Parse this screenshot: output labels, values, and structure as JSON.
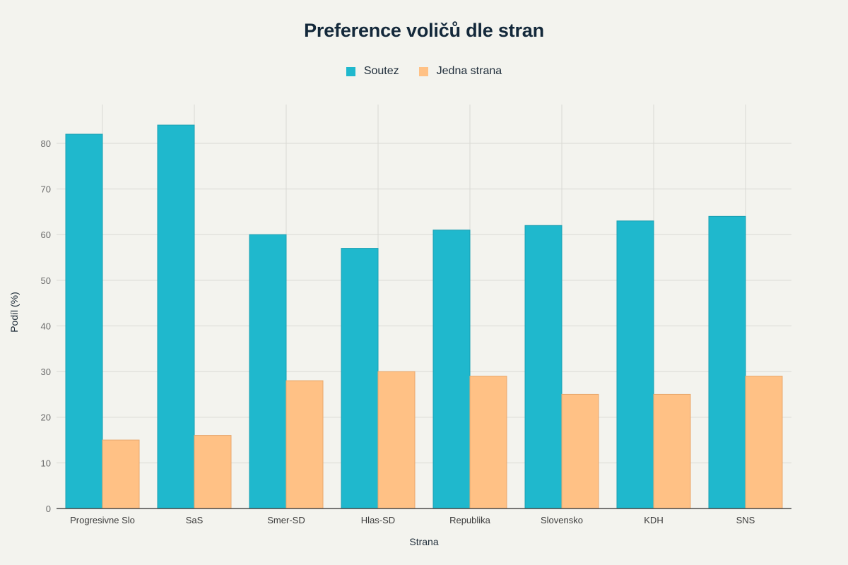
{
  "chart_data": {
    "type": "bar",
    "title": "Preference voličů dle stran",
    "xlabel": "Strana",
    "ylabel": "Podíl (%)",
    "categories": [
      "Progresivne Slo",
      "SaS",
      "Smer-SD",
      "Hlas-SD",
      "Republika",
      "Slovensko",
      "KDH",
      "SNS"
    ],
    "series": [
      {
        "name": "Soutez",
        "color": "#1fb8cd",
        "values": [
          82,
          84,
          60,
          57,
          61,
          62,
          63,
          64
        ]
      },
      {
        "name": "Jedna strana",
        "color": "#ffc185",
        "values": [
          15,
          16,
          28,
          30,
          29,
          25,
          25,
          29
        ]
      }
    ],
    "ylim": [
      0,
      88.5
    ],
    "yticks": [
      0,
      10,
      20,
      30,
      40,
      50,
      60,
      70,
      80
    ],
    "grid": true,
    "legend_position": "top-center"
  }
}
